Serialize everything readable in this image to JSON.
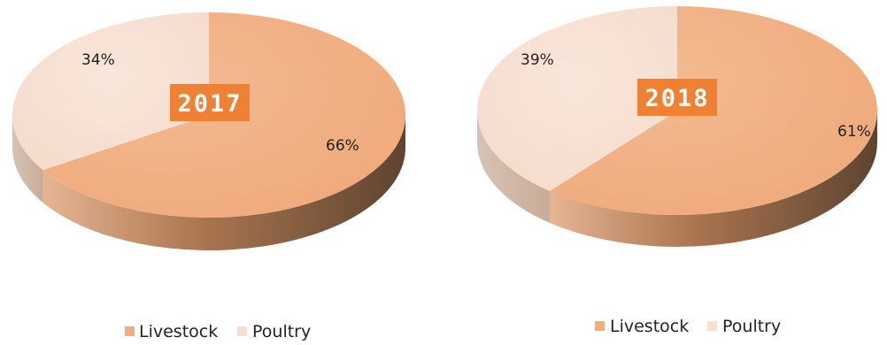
{
  "chart_data": [
    {
      "type": "pie",
      "title": "2017",
      "categories": [
        "Livestock",
        "Poultry"
      ],
      "values": [
        66,
        34
      ],
      "labels": [
        "66%",
        "34%"
      ],
      "colors": [
        "#F0AD80",
        "#F7E0D2"
      ],
      "legend": "bottom",
      "badge_color": "#EE8133"
    },
    {
      "type": "pie",
      "title": "2018",
      "categories": [
        "Livestock",
        "Poultry"
      ],
      "values": [
        61,
        39
      ],
      "labels": [
        "61%",
        "39%"
      ],
      "colors": [
        "#F0AD80",
        "#F7E0D2"
      ],
      "legend": "bottom",
      "badge_color": "#EE8133"
    }
  ]
}
